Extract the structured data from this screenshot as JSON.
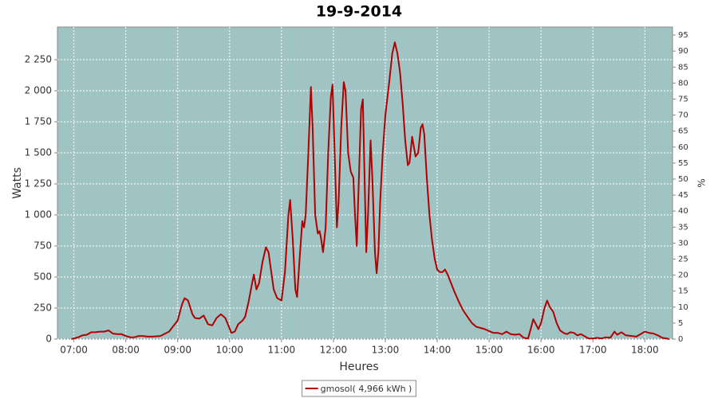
{
  "chart_data": {
    "type": "line",
    "title": "19-9-2014",
    "xlabel": "Heures",
    "ylabel": "Watts",
    "y2label": "%",
    "x": [
      "06:57",
      "07:05",
      "07:10",
      "07:15",
      "07:20",
      "07:25",
      "07:30",
      "07:35",
      "07:40",
      "07:45",
      "07:50",
      "07:55",
      "08:00",
      "08:05",
      "08:10",
      "08:15",
      "08:20",
      "08:25",
      "08:30",
      "08:40",
      "08:50",
      "09:00",
      "09:05",
      "09:08",
      "09:12",
      "09:17",
      "09:20",
      "09:25",
      "09:30",
      "09:35",
      "09:40",
      "09:45",
      "09:50",
      "09:55",
      "09:58",
      "10:02",
      "10:06",
      "10:10",
      "10:15",
      "10:18",
      "10:22",
      "10:26",
      "10:28",
      "10:31",
      "10:34",
      "10:38",
      "10:42",
      "10:45",
      "10:48",
      "10:51",
      "10:55",
      "11:00",
      "11:04",
      "11:08",
      "11:10",
      "11:13",
      "11:16",
      "11:18",
      "11:21",
      "11:24",
      "11:26",
      "11:28",
      "11:31",
      "11:34",
      "11:36",
      "11:39",
      "11:42",
      "11:44",
      "11:46",
      "11:48",
      "11:51",
      "11:54",
      "11:57",
      "11:59",
      "12:01",
      "12:04",
      "12:06",
      "12:09",
      "12:12",
      "12:14",
      "12:17",
      "12:20",
      "12:23",
      "12:25",
      "12:27",
      "12:29",
      "12:32",
      "12:34",
      "12:36",
      "12:38",
      "12:40",
      "12:43",
      "12:45",
      "12:48",
      "12:50",
      "12:52",
      "12:54",
      "12:57",
      "13:00",
      "13:05",
      "13:08",
      "13:11",
      "13:14",
      "13:17",
      "13:20",
      "13:23",
      "13:26",
      "13:28",
      "13:31",
      "13:35",
      "13:38",
      "13:41",
      "13:43",
      "13:45",
      "13:48",
      "13:51",
      "13:54",
      "13:57",
      "14:00",
      "14:03",
      "14:06",
      "14:09",
      "14:12",
      "14:16",
      "14:20",
      "14:25",
      "14:30",
      "14:35",
      "14:40",
      "14:45",
      "14:50",
      "14:55",
      "15:00",
      "15:05",
      "15:10",
      "15:15",
      "15:20",
      "15:25",
      "15:30",
      "15:35",
      "15:40",
      "15:45",
      "15:48",
      "15:51",
      "15:54",
      "15:57",
      "16:00",
      "16:04",
      "16:07",
      "16:10",
      "16:14",
      "16:18",
      "16:22",
      "16:26",
      "16:30",
      "16:34",
      "16:38",
      "16:42",
      "16:46",
      "16:50",
      "16:55",
      "17:00",
      "17:05",
      "17:10",
      "17:15",
      "17:20",
      "17:25",
      "17:28",
      "17:33",
      "17:38",
      "17:45",
      "17:50",
      "17:55",
      "18:00",
      "18:05",
      "18:10",
      "18:15",
      "18:20",
      "18:25",
      "18:28"
    ],
    "series": [
      {
        "name": "gmosol( 4,966 kWh )",
        "color": "#b00000",
        "values": [
          0,
          15,
          30,
          35,
          55,
          55,
          60,
          60,
          70,
          45,
          40,
          40,
          25,
          15,
          15,
          25,
          25,
          20,
          20,
          25,
          60,
          150,
          280,
          330,
          310,
          200,
          170,
          165,
          190,
          120,
          110,
          170,
          200,
          170,
          120,
          50,
          60,
          120,
          150,
          180,
          300,
          450,
          520,
          400,
          450,
          620,
          740,
          700,
          550,
          400,
          330,
          310,
          540,
          1000,
          1120,
          800,
          400,
          340,
          650,
          950,
          900,
          1000,
          1500,
          2030,
          1700,
          1000,
          850,
          870,
          800,
          700,
          900,
          1500,
          1950,
          2050,
          1600,
          900,
          1100,
          1700,
          2070,
          2000,
          1500,
          1350,
          1300,
          1000,
          750,
          1200,
          1850,
          1930,
          1300,
          700,
          1000,
          1600,
          1300,
          700,
          530,
          700,
          1100,
          1500,
          1800,
          2100,
          2300,
          2390,
          2300,
          2150,
          1900,
          1600,
          1400,
          1420,
          1630,
          1470,
          1500,
          1700,
          1730,
          1650,
          1300,
          1000,
          800,
          650,
          560,
          540,
          540,
          560,
          520,
          450,
          380,
          300,
          230,
          180,
          130,
          100,
          90,
          80,
          65,
          50,
          50,
          40,
          60,
          40,
          35,
          40,
          10,
          5,
          80,
          160,
          120,
          80,
          130,
          250,
          310,
          260,
          220,
          130,
          70,
          50,
          40,
          55,
          50,
          30,
          40,
          25,
          5,
          5,
          10,
          5,
          15,
          10,
          60,
          35,
          55,
          30,
          25,
          20,
          40,
          60,
          50,
          45,
          30,
          10,
          5,
          0
        ]
      }
    ],
    "xlim": [
      "06:41",
      "18:32"
    ],
    "xticks": [
      "07:00",
      "08:00",
      "09:00",
      "10:00",
      "11:00",
      "12:00",
      "13:00",
      "14:00",
      "15:00",
      "16:00",
      "17:00",
      "18:00"
    ],
    "ylim": [
      0,
      2513
    ],
    "yticks": [
      0,
      250,
      500,
      750,
      {
        "value": 1000,
        "label": "1 000"
      },
      {
        "value": 1250,
        "label": "1 250"
      },
      {
        "value": 1500,
        "label": "1 500"
      },
      {
        "value": 1750,
        "label": "1 750"
      },
      {
        "value": 2000,
        "label": "2 000"
      },
      {
        "value": 2250,
        "label": "2 250"
      }
    ],
    "y2lim": [
      0,
      97.5
    ],
    "y2ticks": [
      0,
      5,
      10,
      15,
      20,
      25,
      30,
      35,
      40,
      45,
      50,
      55,
      60,
      65,
      70,
      75,
      80,
      85,
      90,
      95
    ],
    "grid": true,
    "background": "#a0c4c4",
    "legend": "bottom"
  }
}
